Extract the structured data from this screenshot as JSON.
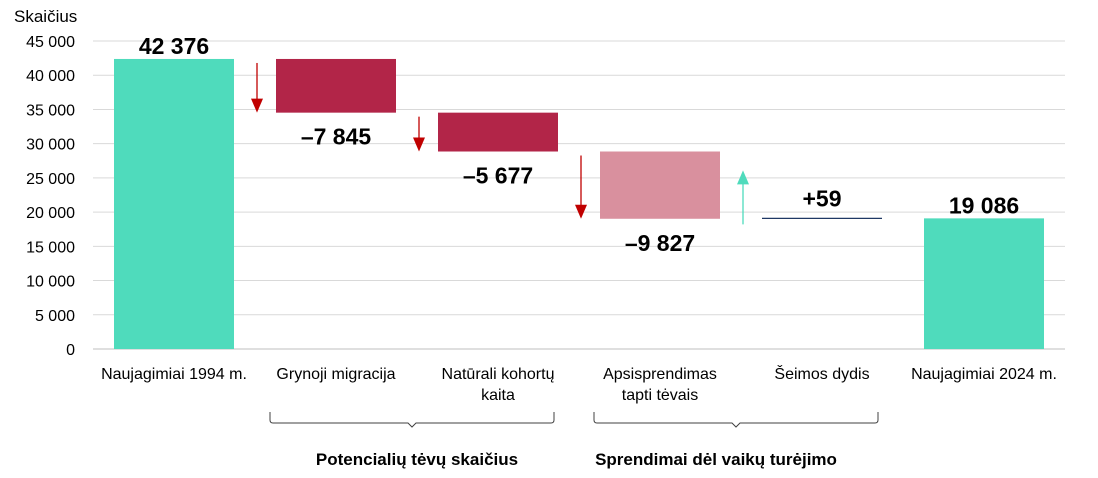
{
  "chart_data": {
    "type": "bar",
    "subtype": "waterfall",
    "ylabel": "Skaičius",
    "ylim": [
      0,
      45000
    ],
    "yticks": [
      "0",
      "5 000",
      "10 000",
      "15 000",
      "20 000",
      "25 000",
      "30 000",
      "35 000",
      "40 000",
      "45 000"
    ],
    "grid": true,
    "steps": [
      {
        "category": [
          "Naujagimiai 1994 m."
        ],
        "kind": "total",
        "value": 42376,
        "label": "42 376",
        "color": "#4fdbbc"
      },
      {
        "category": [
          "Grynoji migracija"
        ],
        "kind": "delta",
        "value": -7845,
        "label": "–7 845",
        "color": "#b22548"
      },
      {
        "category": [
          "Natūrali kohortų",
          "kaita"
        ],
        "kind": "delta",
        "value": -5677,
        "label": "–5 677",
        "color": "#b22548"
      },
      {
        "category": [
          "Apsisprendimas",
          "tapti tėvais"
        ],
        "kind": "delta",
        "value": -9827,
        "label": "–9 827",
        "color": "#d9909e"
      },
      {
        "category": [
          "Šeimos dydis"
        ],
        "kind": "delta",
        "value": 59,
        "label": "+59",
        "color": "#1f3864"
      },
      {
        "category": [
          "Naujagimiai 2024 m."
        ],
        "kind": "total",
        "value": 19086,
        "label": "19 086",
        "color": "#4fdbbc"
      }
    ],
    "groups": [
      {
        "label": "Potencialių tėvų skaičius",
        "from": 1,
        "to": 2
      },
      {
        "label": "Sprendimai dėl vaikų turėjimo",
        "from": 3,
        "to": 4
      }
    ],
    "arrow_colors": {
      "down": "#c00000",
      "up": "#4fdbbc"
    }
  }
}
